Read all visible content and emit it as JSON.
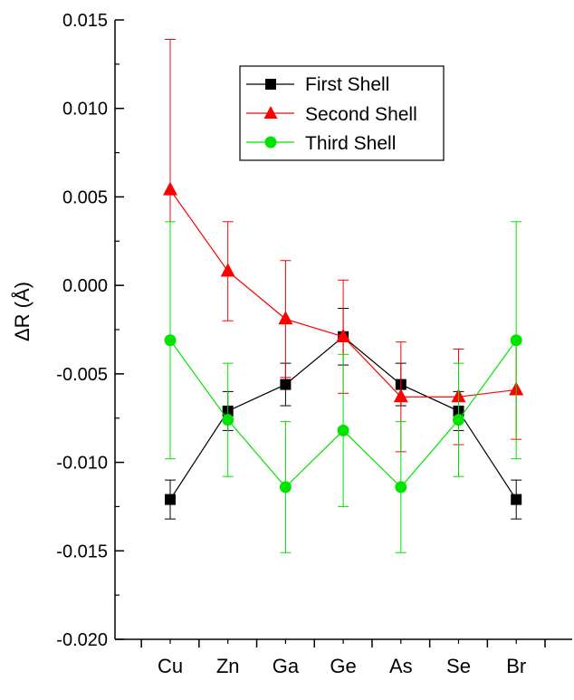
{
  "chart_data": {
    "type": "line",
    "title": "",
    "xlabel": "",
    "ylabel": "ΔR (Å)",
    "categories": [
      "Cu",
      "Zn",
      "Ga",
      "Ge",
      "As",
      "Se",
      "Br"
    ],
    "ylim": [
      -0.02,
      0.015
    ],
    "yticks": [
      0.015,
      0.01,
      0.005,
      0.0,
      -0.005,
      -0.01,
      -0.015,
      -0.02
    ],
    "ytick_labels": [
      "0.015",
      "0.010",
      "0.005",
      "0.000",
      "-0.005",
      "-0.010",
      "-0.015",
      "-0.020"
    ],
    "grid": false,
    "legend_position": "top-center",
    "series": [
      {
        "name": "First Shell",
        "color": "#000000",
        "marker": "square",
        "values": [
          -0.0121,
          -0.0071,
          -0.0056,
          -0.0029,
          -0.0056,
          -0.0071,
          -0.0121
        ],
        "errors": [
          0.0011,
          0.0011,
          0.0012,
          0.0016,
          0.0012,
          0.0011,
          0.0011
        ]
      },
      {
        "name": "Second Shell",
        "color": "#ff0000",
        "marker": "triangle",
        "values": [
          0.0054,
          0.0008,
          -0.0019,
          -0.0029,
          -0.0063,
          -0.0063,
          -0.0059
        ],
        "errors": [
          0.0085,
          0.0028,
          0.0033,
          0.0032,
          0.0031,
          0.0027,
          0.0028
        ]
      },
      {
        "name": "Third Shell",
        "color": "#00e400",
        "marker": "circle",
        "values": [
          -0.0031,
          -0.0076,
          -0.0114,
          -0.0082,
          -0.0114,
          -0.0076,
          -0.0031
        ],
        "errors": [
          0.0067,
          0.0032,
          0.0037,
          0.0043,
          0.0037,
          0.0032,
          0.0067
        ]
      }
    ]
  }
}
